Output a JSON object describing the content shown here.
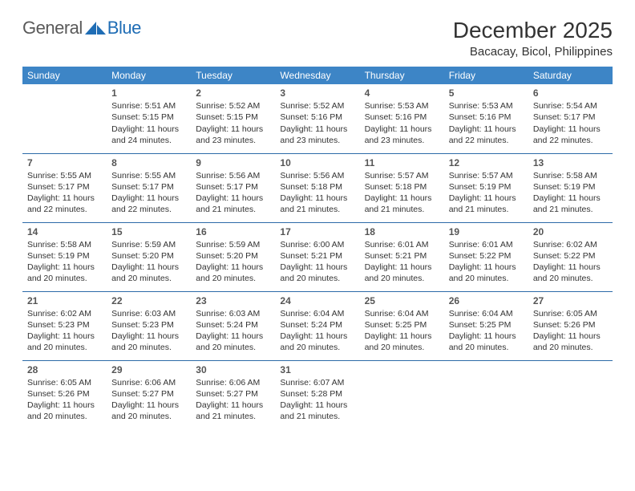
{
  "logo": {
    "part1": "General",
    "part2": "Blue"
  },
  "title": "December 2025",
  "location": "Bacacay, Bicol, Philippines",
  "colors": {
    "header_bg": "#3d85c6",
    "header_text": "#ffffff",
    "row_border": "#2d6ba8",
    "text": "#333333",
    "logo_gray": "#5a5a5a",
    "logo_blue": "#1f6db5"
  },
  "weekdays": [
    "Sunday",
    "Monday",
    "Tuesday",
    "Wednesday",
    "Thursday",
    "Friday",
    "Saturday"
  ],
  "weeks": [
    [
      null,
      {
        "n": "1",
        "sr": "Sunrise: 5:51 AM",
        "ss": "Sunset: 5:15 PM",
        "dl": "Daylight: 11 hours and 24 minutes."
      },
      {
        "n": "2",
        "sr": "Sunrise: 5:52 AM",
        "ss": "Sunset: 5:15 PM",
        "dl": "Daylight: 11 hours and 23 minutes."
      },
      {
        "n": "3",
        "sr": "Sunrise: 5:52 AM",
        "ss": "Sunset: 5:16 PM",
        "dl": "Daylight: 11 hours and 23 minutes."
      },
      {
        "n": "4",
        "sr": "Sunrise: 5:53 AM",
        "ss": "Sunset: 5:16 PM",
        "dl": "Daylight: 11 hours and 23 minutes."
      },
      {
        "n": "5",
        "sr": "Sunrise: 5:53 AM",
        "ss": "Sunset: 5:16 PM",
        "dl": "Daylight: 11 hours and 22 minutes."
      },
      {
        "n": "6",
        "sr": "Sunrise: 5:54 AM",
        "ss": "Sunset: 5:17 PM",
        "dl": "Daylight: 11 hours and 22 minutes."
      }
    ],
    [
      {
        "n": "7",
        "sr": "Sunrise: 5:55 AM",
        "ss": "Sunset: 5:17 PM",
        "dl": "Daylight: 11 hours and 22 minutes."
      },
      {
        "n": "8",
        "sr": "Sunrise: 5:55 AM",
        "ss": "Sunset: 5:17 PM",
        "dl": "Daylight: 11 hours and 22 minutes."
      },
      {
        "n": "9",
        "sr": "Sunrise: 5:56 AM",
        "ss": "Sunset: 5:17 PM",
        "dl": "Daylight: 11 hours and 21 minutes."
      },
      {
        "n": "10",
        "sr": "Sunrise: 5:56 AM",
        "ss": "Sunset: 5:18 PM",
        "dl": "Daylight: 11 hours and 21 minutes."
      },
      {
        "n": "11",
        "sr": "Sunrise: 5:57 AM",
        "ss": "Sunset: 5:18 PM",
        "dl": "Daylight: 11 hours and 21 minutes."
      },
      {
        "n": "12",
        "sr": "Sunrise: 5:57 AM",
        "ss": "Sunset: 5:19 PM",
        "dl": "Daylight: 11 hours and 21 minutes."
      },
      {
        "n": "13",
        "sr": "Sunrise: 5:58 AM",
        "ss": "Sunset: 5:19 PM",
        "dl": "Daylight: 11 hours and 21 minutes."
      }
    ],
    [
      {
        "n": "14",
        "sr": "Sunrise: 5:58 AM",
        "ss": "Sunset: 5:19 PM",
        "dl": "Daylight: 11 hours and 20 minutes."
      },
      {
        "n": "15",
        "sr": "Sunrise: 5:59 AM",
        "ss": "Sunset: 5:20 PM",
        "dl": "Daylight: 11 hours and 20 minutes."
      },
      {
        "n": "16",
        "sr": "Sunrise: 5:59 AM",
        "ss": "Sunset: 5:20 PM",
        "dl": "Daylight: 11 hours and 20 minutes."
      },
      {
        "n": "17",
        "sr": "Sunrise: 6:00 AM",
        "ss": "Sunset: 5:21 PM",
        "dl": "Daylight: 11 hours and 20 minutes."
      },
      {
        "n": "18",
        "sr": "Sunrise: 6:01 AM",
        "ss": "Sunset: 5:21 PM",
        "dl": "Daylight: 11 hours and 20 minutes."
      },
      {
        "n": "19",
        "sr": "Sunrise: 6:01 AM",
        "ss": "Sunset: 5:22 PM",
        "dl": "Daylight: 11 hours and 20 minutes."
      },
      {
        "n": "20",
        "sr": "Sunrise: 6:02 AM",
        "ss": "Sunset: 5:22 PM",
        "dl": "Daylight: 11 hours and 20 minutes."
      }
    ],
    [
      {
        "n": "21",
        "sr": "Sunrise: 6:02 AM",
        "ss": "Sunset: 5:23 PM",
        "dl": "Daylight: 11 hours and 20 minutes."
      },
      {
        "n": "22",
        "sr": "Sunrise: 6:03 AM",
        "ss": "Sunset: 5:23 PM",
        "dl": "Daylight: 11 hours and 20 minutes."
      },
      {
        "n": "23",
        "sr": "Sunrise: 6:03 AM",
        "ss": "Sunset: 5:24 PM",
        "dl": "Daylight: 11 hours and 20 minutes."
      },
      {
        "n": "24",
        "sr": "Sunrise: 6:04 AM",
        "ss": "Sunset: 5:24 PM",
        "dl": "Daylight: 11 hours and 20 minutes."
      },
      {
        "n": "25",
        "sr": "Sunrise: 6:04 AM",
        "ss": "Sunset: 5:25 PM",
        "dl": "Daylight: 11 hours and 20 minutes."
      },
      {
        "n": "26",
        "sr": "Sunrise: 6:04 AM",
        "ss": "Sunset: 5:25 PM",
        "dl": "Daylight: 11 hours and 20 minutes."
      },
      {
        "n": "27",
        "sr": "Sunrise: 6:05 AM",
        "ss": "Sunset: 5:26 PM",
        "dl": "Daylight: 11 hours and 20 minutes."
      }
    ],
    [
      {
        "n": "28",
        "sr": "Sunrise: 6:05 AM",
        "ss": "Sunset: 5:26 PM",
        "dl": "Daylight: 11 hours and 20 minutes."
      },
      {
        "n": "29",
        "sr": "Sunrise: 6:06 AM",
        "ss": "Sunset: 5:27 PM",
        "dl": "Daylight: 11 hours and 20 minutes."
      },
      {
        "n": "30",
        "sr": "Sunrise: 6:06 AM",
        "ss": "Sunset: 5:27 PM",
        "dl": "Daylight: 11 hours and 21 minutes."
      },
      {
        "n": "31",
        "sr": "Sunrise: 6:07 AM",
        "ss": "Sunset: 5:28 PM",
        "dl": "Daylight: 11 hours and 21 minutes."
      },
      null,
      null,
      null
    ]
  ]
}
